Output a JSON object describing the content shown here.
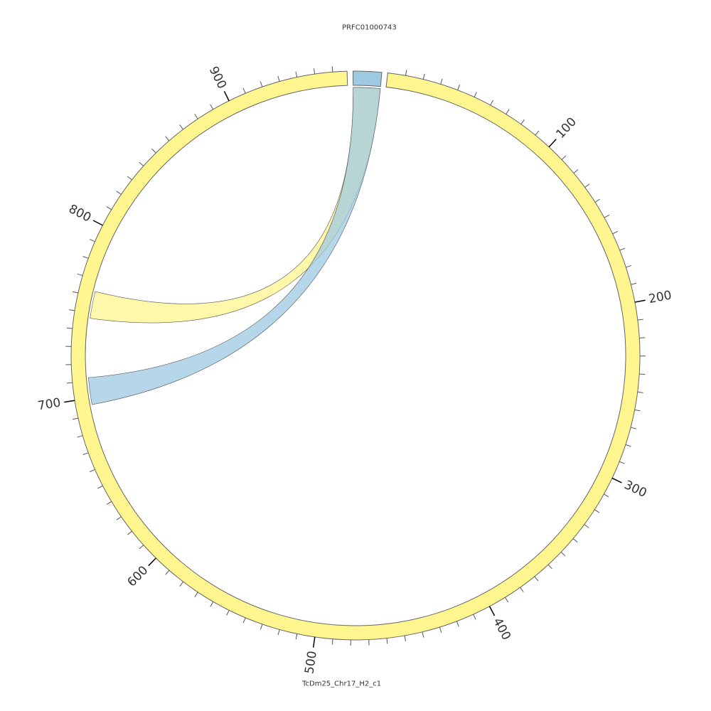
{
  "chart_data": {
    "type": "chord",
    "segments": [
      {
        "name": "PRFC01000743",
        "length": 16,
        "color": "#9ecae1"
      },
      {
        "name": "TcDm25_Chr17_H2_c1",
        "length": 968,
        "color": "#fff68f"
      }
    ],
    "ticks": [
      100,
      200,
      300,
      400,
      500,
      600,
      700,
      800,
      900
    ],
    "minor_tick_interval": 10,
    "links": [
      {
        "source_start": 0,
        "source_end": 16,
        "target_start": 747,
        "target_end": 763,
        "color": "#fff68f"
      },
      {
        "source_start": 0,
        "source_end": 16,
        "target_start": 696,
        "target_end": 712,
        "color": "#9ecae1"
      }
    ]
  }
}
